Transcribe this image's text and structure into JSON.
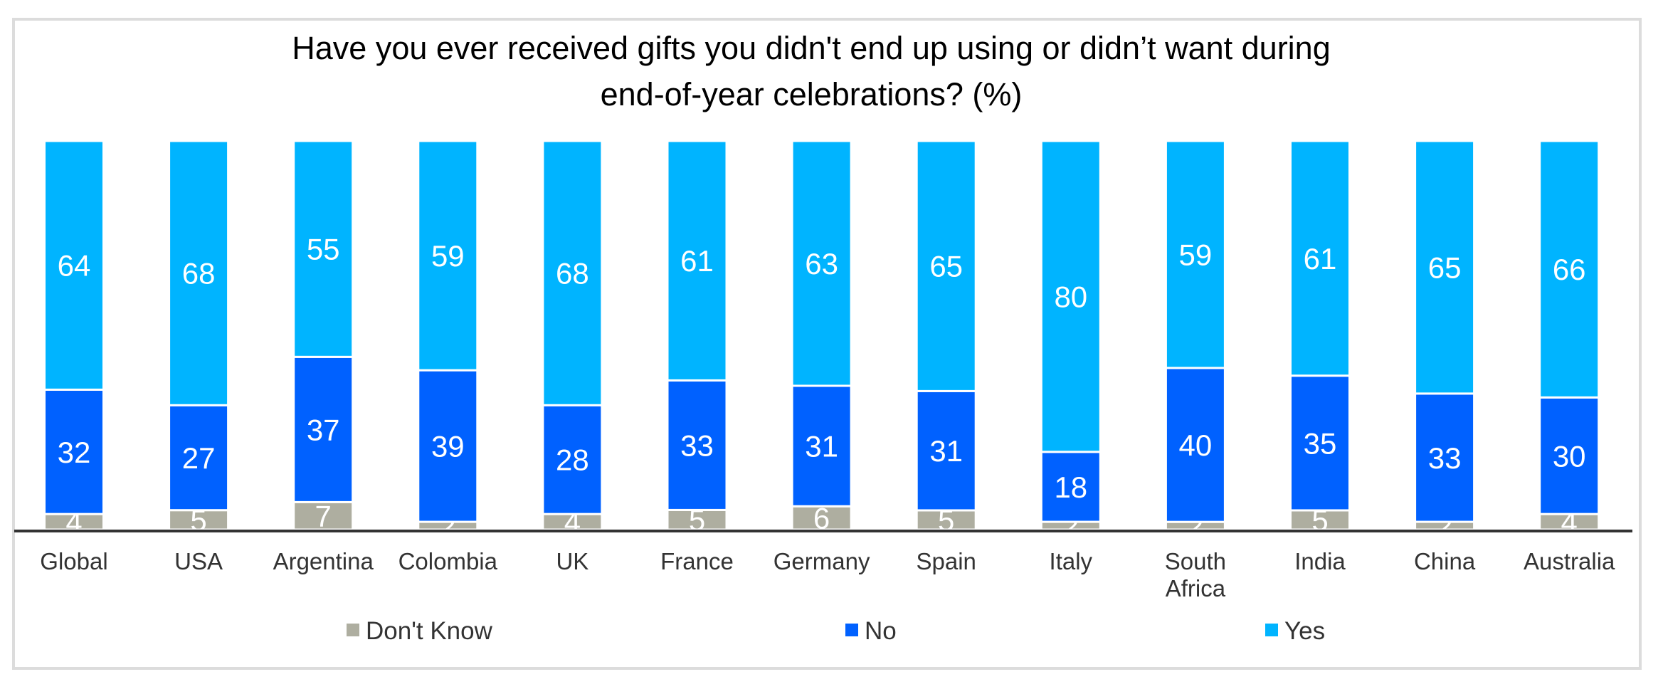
{
  "chart_data": {
    "type": "bar",
    "stacked": true,
    "title_lines": [
      "Have you ever received gifts you didn't end up using or didn’t want during",
      "end-of-year celebrations? (%)"
    ],
    "categories": [
      "Global",
      "USA",
      "Argentina",
      "Colombia",
      "UK",
      "France",
      "Germany",
      "Spain",
      "Italy",
      "South Africa",
      "India",
      "China",
      "Australia"
    ],
    "category_lines": [
      [
        "Global"
      ],
      [
        "USA"
      ],
      [
        "Argentina"
      ],
      [
        "Colombia"
      ],
      [
        "UK"
      ],
      [
        "France"
      ],
      [
        "Germany"
      ],
      [
        "Spain"
      ],
      [
        "Italy"
      ],
      [
        "South",
        "Africa"
      ],
      [
        "India"
      ],
      [
        "China"
      ],
      [
        "Australia"
      ]
    ],
    "series": [
      {
        "name": "Don't Know",
        "color": "#aeaea0",
        "values": [
          4,
          5,
          7,
          2,
          4,
          5,
          6,
          5,
          2,
          2,
          5,
          2,
          4
        ]
      },
      {
        "name": "No",
        "color": "#0061ff",
        "values": [
          32,
          27,
          37,
          39,
          28,
          33,
          31,
          31,
          18,
          40,
          35,
          33,
          30
        ]
      },
      {
        "name": "Yes",
        "color": "#00b4ff",
        "values": [
          64,
          68,
          55,
          59,
          68,
          61,
          63,
          65,
          80,
          59,
          61,
          65,
          66
        ]
      }
    ],
    "ylim": [
      0,
      100
    ],
    "grid": false,
    "y_axis_visible": false,
    "legend_position": "bottom",
    "data_labels": true
  }
}
